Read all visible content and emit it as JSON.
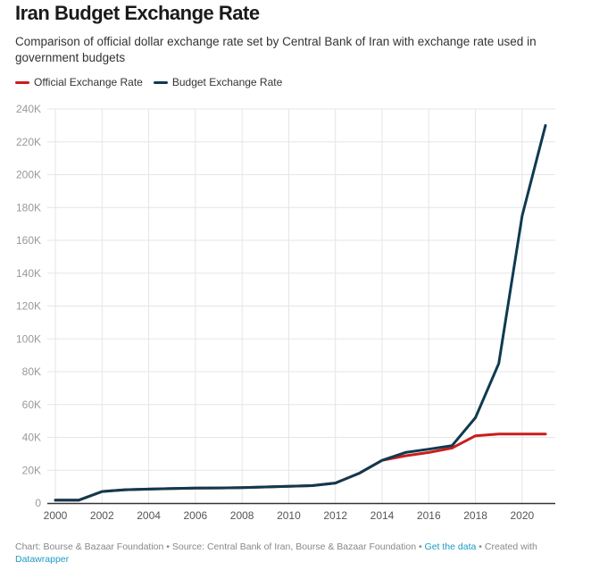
{
  "header": {
    "title": "Iran Budget Exchange Rate",
    "subtitle": "Comparison of official dollar exchange rate set by Central Bank of Iran with exchange rate used in government budgets"
  },
  "legend": [
    {
      "label": "Official Exchange Rate",
      "color": "#c71e1d"
    },
    {
      "label": "Budget Exchange Rate",
      "color": "#0f3a50"
    }
  ],
  "footer": {
    "chart_credit": "Chart: Bourse & Bazaar Foundation",
    "separator": " • ",
    "source": "Source: Central Bank of Iran, Bourse & Bazaar Foundation",
    "get_data_link": "Get the data",
    "created_with": "Created with",
    "datawrapper_link": "Datawrapper"
  },
  "chart_data": {
    "type": "line",
    "title": "Iran Budget Exchange Rate",
    "subtitle": "Comparison of official dollar exchange rate set by Central Bank of Iran with exchange rate used in government budgets",
    "xlabel": "",
    "ylabel": "",
    "x": [
      2000,
      2001,
      2002,
      2003,
      2004,
      2005,
      2006,
      2007,
      2008,
      2009,
      2010,
      2011,
      2012,
      2013,
      2014,
      2015,
      2016,
      2017,
      2018,
      2019,
      2020,
      2021
    ],
    "series": [
      {
        "name": "Official Exchange Rate",
        "color": "#c71e1d",
        "values": [
          1750,
          1750,
          7000,
          8100,
          8500,
          8800,
          9100,
          9200,
          9400,
          9800,
          10200,
          10600,
          12200,
          18000,
          26000,
          28800,
          30800,
          33500,
          41000,
          42000,
          42000,
          42000
        ]
      },
      {
        "name": "Budget Exchange Rate",
        "color": "#0f3a50",
        "values": [
          1750,
          1750,
          7000,
          8100,
          8500,
          8800,
          9100,
          9200,
          9400,
          9800,
          10200,
          10600,
          12200,
          18000,
          26000,
          30800,
          32800,
          35000,
          52000,
          85000,
          175000,
          230000
        ]
      }
    ],
    "xticks": [
      "2000",
      "2002",
      "2004",
      "2006",
      "2008",
      "2010",
      "2012",
      "2014",
      "2016",
      "2018",
      "2020"
    ],
    "xtick_values": [
      2000,
      2002,
      2004,
      2006,
      2008,
      2010,
      2012,
      2014,
      2016,
      2018,
      2020
    ],
    "yticks": [
      "0",
      "20K",
      "40K",
      "60K",
      "80K",
      "100K",
      "120K",
      "140K",
      "160K",
      "180K",
      "200K",
      "220K",
      "240K"
    ],
    "ytick_values": [
      0,
      20000,
      40000,
      60000,
      80000,
      100000,
      120000,
      140000,
      160000,
      180000,
      200000,
      220000,
      240000
    ],
    "xlim": [
      2000,
      2021
    ],
    "ylim": [
      0,
      240000
    ],
    "grid": true,
    "legend_position": "top-left"
  }
}
